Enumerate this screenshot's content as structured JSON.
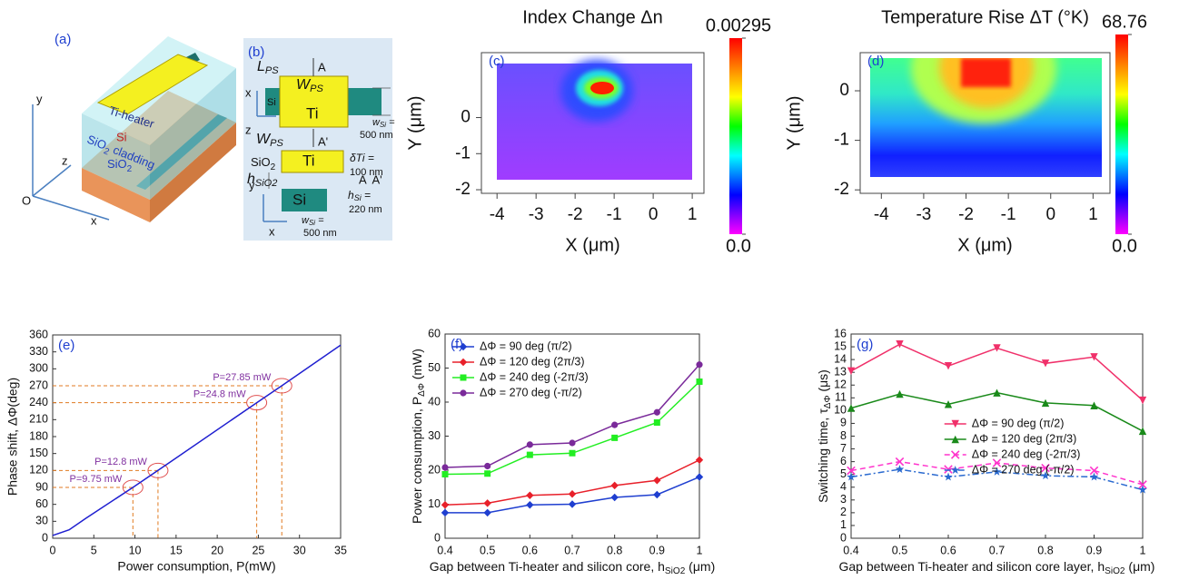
{
  "diagrams": {
    "a": {
      "panel_label": "(a)",
      "heater": "Ti-heater",
      "core": "Si",
      "cladding": {
        "main": "SiO",
        "sub": "2",
        "after": " cladding"
      },
      "substrate": {
        "main": "SiO",
        "sub": "2"
      },
      "axis_y": "y",
      "axis_z": "z",
      "axis_x": "x",
      "origin": "O"
    },
    "b": {
      "panel_label": "(b)",
      "l_ps": {
        "main": "L",
        "sub": "PS"
      },
      "section_a": "A",
      "w_ps_top": {
        "main": "W",
        "sub": "PS"
      },
      "ti_top": "Ti",
      "si_top": "Si",
      "axis_x_top": "x",
      "axis_z": "z",
      "w_ps_bottom": {
        "main": "W",
        "sub": "PS"
      },
      "section_a_prime": "A'",
      "w_si_top": {
        "main": "w",
        "sub": "Si",
        "after": " ="
      },
      "w_si_top_value": "500 nm",
      "sio2": {
        "main": "SiO",
        "sub": "2"
      },
      "ti_bottom": "Ti",
      "delta_ti": "δTi =",
      "delta_ti_value": "100 nm",
      "h_sio2": {
        "main": "h",
        "sub": "SiO2"
      },
      "section_pair": "A  A'",
      "axis_y": "y",
      "si_bottom": "Si",
      "h_si": {
        "main": "h",
        "sub": "Si",
        "after": " ="
      },
      "h_si_value": "220 nm",
      "w_si_bottom": {
        "main": "w",
        "sub": "Si",
        "after": " ="
      },
      "w_si_bottom_value": "500 nm",
      "axis_x_bottom": "x"
    }
  },
  "chart_data": [
    {
      "type": "heatmap",
      "panel_label": "(c)",
      "title": "Index Change Δn",
      "xlabel": "X (μm)",
      "ylabel": "Y (μm)",
      "xlim": [
        -4.4,
        1.3
      ],
      "ylim": [
        -2.1,
        1.8
      ],
      "xticks": [
        -4,
        -3,
        -2,
        -1,
        0,
        1
      ],
      "yticks": [
        -2,
        -1,
        0
      ],
      "clim": [
        0,
        0.00295
      ],
      "cticks": [
        {
          "value": 0,
          "label": "0.0"
        },
        0.00295
      ],
      "colormap": "jet"
    },
    {
      "type": "heatmap",
      "panel_label": "(d)",
      "title": "Temperature Rise ΔT (°K)",
      "xlabel": "X (μm)",
      "ylabel": "Y (μm)",
      "xlim": [
        -4.5,
        1.4
      ],
      "ylim": [
        -2.07,
        0.77
      ],
      "xticks": [
        -4,
        -3,
        -2,
        -1,
        0,
        1
      ],
      "yticks": [
        -2,
        -1,
        0
      ],
      "clim": [
        0,
        68.76
      ],
      "cticks": [
        {
          "value": 0,
          "label": "0.0"
        },
        68.76
      ],
      "colormap": "jet"
    },
    {
      "type": "line",
      "panel_label": "(e)",
      "xlabel": "Power consumption, P(mW)",
      "ylabel": "Phase shift, ΔΦ(deg)",
      "x": [
        0,
        2,
        4,
        9.75,
        12.8,
        24.8,
        27.85,
        35
      ],
      "series": [
        {
          "color": "#1f1fd0",
          "values": [
            5,
            15,
            35,
            90,
            120,
            240,
            270,
            342
          ]
        }
      ],
      "xlim": [
        0,
        35
      ],
      "ylim": [
        0,
        360
      ],
      "xticks": [
        0,
        5,
        10,
        15,
        20,
        25,
        30,
        35
      ],
      "yticks": [
        0,
        30,
        60,
        90,
        120,
        150,
        180,
        210,
        240,
        270,
        300,
        330,
        360
      ],
      "annotations": [
        {
          "text": "P=9.75 mW",
          "x": 9.75,
          "y": 90
        },
        {
          "text": "P=12.8 mW",
          "x": 12.8,
          "y": 120
        },
        {
          "text": "P=24.8 mW",
          "x": 24.8,
          "y": 240
        },
        {
          "text": "P=27.85 mW",
          "x": 27.85,
          "y": 270
        }
      ]
    },
    {
      "type": "line",
      "panel_label": "(f)",
      "xlabel": {
        "main": "Gap between Ti-heater and silicon core, h",
        "sub": "SiO2",
        "after": " (μm)"
      },
      "ylabel": {
        "main": "Power consumption, P",
        "sub": "ΔΦ",
        "after": " (mW)"
      },
      "x": [
        0.4,
        0.5,
        0.6,
        0.7,
        0.8,
        0.9,
        1
      ],
      "series": [
        {
          "name": "ΔΦ = 90 deg (π/2)",
          "color": "#1f3fd0",
          "marker": "diamond",
          "values": [
            7.5,
            7.5,
            9.8,
            10,
            12,
            12.8,
            18
          ]
        },
        {
          "name": "ΔΦ = 120 deg (2π/3)",
          "color": "#e8202a",
          "marker": "diamond",
          "values": [
            9.8,
            10.3,
            12.6,
            13,
            15.5,
            17,
            23
          ]
        },
        {
          "name": "ΔΦ = 240 deg (-2π/3)",
          "color": "#22ee22",
          "marker": "square",
          "values": [
            18.8,
            19,
            24.5,
            25,
            29.5,
            34,
            46
          ]
        },
        {
          "name": "ΔΦ = 270 deg (-π/2)",
          "color": "#7a2a9a",
          "marker": "circle",
          "values": [
            20.8,
            21.2,
            27.5,
            28,
            33.3,
            37,
            51
          ]
        }
      ],
      "xlim": [
        0.4,
        1
      ],
      "ylim": [
        0,
        60
      ],
      "xticks": [
        0.4,
        0.5,
        0.6,
        0.7,
        0.8,
        0.9,
        1
      ],
      "yticks": [
        0,
        10,
        20,
        30,
        40,
        50,
        60
      ],
      "legend": "upper left"
    },
    {
      "type": "line",
      "panel_label": "(g)",
      "xlabel": {
        "main": "Gap between Ti-heater and silicon core layer, h",
        "sub": "SiO2",
        "after": " (μm)"
      },
      "ylabel": {
        "main": "Switching time, τ",
        "sub": "ΔΦ",
        "after": " (μs)"
      },
      "x": [
        0.4,
        0.5,
        0.6,
        0.7,
        0.8,
        0.9,
        1
      ],
      "series": [
        {
          "name": "ΔΦ = 90 deg (π/2)",
          "color": "#f0306a",
          "marker": "triangle-down",
          "line_style": "solid",
          "values": [
            13.1,
            15.2,
            13.5,
            14.9,
            13.7,
            14.2,
            10.8
          ]
        },
        {
          "name": "ΔΦ = 120 deg (2π/3)",
          "color": "#1a8a1a",
          "marker": "triangle-up",
          "line_style": "solid",
          "values": [
            10.2,
            11.3,
            10.5,
            11.4,
            10.6,
            10.4,
            8.4
          ]
        },
        {
          "name": "ΔΦ = 240 deg (-2π/3)",
          "color": "#ff33cc",
          "marker": "x",
          "line_style": "dashed",
          "values": [
            5.3,
            6.0,
            5.4,
            5.9,
            5.5,
            5.3,
            4.2
          ]
        },
        {
          "name": "ΔΦ = 270 deg (-π/2)",
          "color": "#2a6ad0",
          "marker": "star",
          "line_style": "dashdot",
          "values": [
            4.8,
            5.4,
            4.8,
            5.2,
            4.9,
            4.8,
            3.8
          ]
        }
      ],
      "xlim": [
        0.4,
        1
      ],
      "ylim": [
        0,
        16
      ],
      "xticks": [
        0.4,
        0.5,
        0.6,
        0.7,
        0.8,
        0.9,
        1
      ],
      "yticks": [
        0,
        1,
        2,
        3,
        4,
        5,
        6,
        7,
        8,
        9,
        10,
        11,
        12,
        13,
        14,
        15,
        16
      ],
      "legend": "center"
    }
  ]
}
